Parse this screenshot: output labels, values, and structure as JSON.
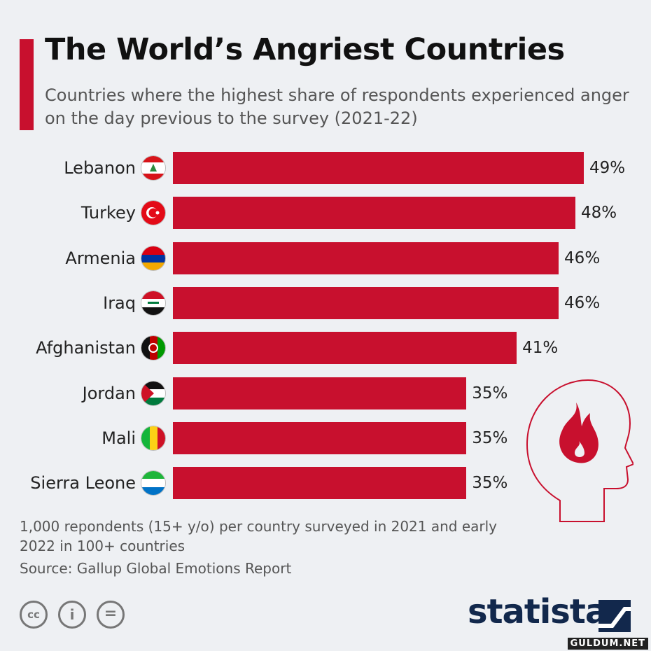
{
  "title": "The World’s Angriest Countries",
  "subtitle": "Countries where the highest share of respondents experienced anger on the day previous to the survey (2021-22)",
  "note": "1,000 repondents (15+ y/o) per country surveyed in 2021 and early 2022 in 100+ countries",
  "source": "Source: Gallup Global Emotions Report",
  "brand": "statista",
  "watermark": "GULDUM.NET",
  "accent_color": "#c8102e",
  "icons": {
    "cc": "creative-commons-icon",
    "by": "attribution-icon",
    "nd": "no-derivatives-icon",
    "head": "angry-head-flame-icon",
    "cc_text": "cc",
    "by_text": "i",
    "nd_text": "="
  },
  "chart_data": {
    "type": "bar",
    "orientation": "horizontal",
    "categories": [
      "Lebanon",
      "Turkey",
      "Armenia",
      "Iraq",
      "Afghanistan",
      "Jordan",
      "Mali",
      "Sierra Leone"
    ],
    "values": [
      49,
      48,
      46,
      46,
      41,
      35,
      35,
      35
    ],
    "value_labels": [
      "49%",
      "48%",
      "46%",
      "46%",
      "41%",
      "35%",
      "35%",
      "35%"
    ],
    "unit": "%",
    "bar_color": "#c8102e",
    "title": "The World’s Angriest Countries",
    "xlabel": "",
    "ylabel": "",
    "xlim": [
      0,
      49
    ],
    "grid": false,
    "legend": "none"
  }
}
